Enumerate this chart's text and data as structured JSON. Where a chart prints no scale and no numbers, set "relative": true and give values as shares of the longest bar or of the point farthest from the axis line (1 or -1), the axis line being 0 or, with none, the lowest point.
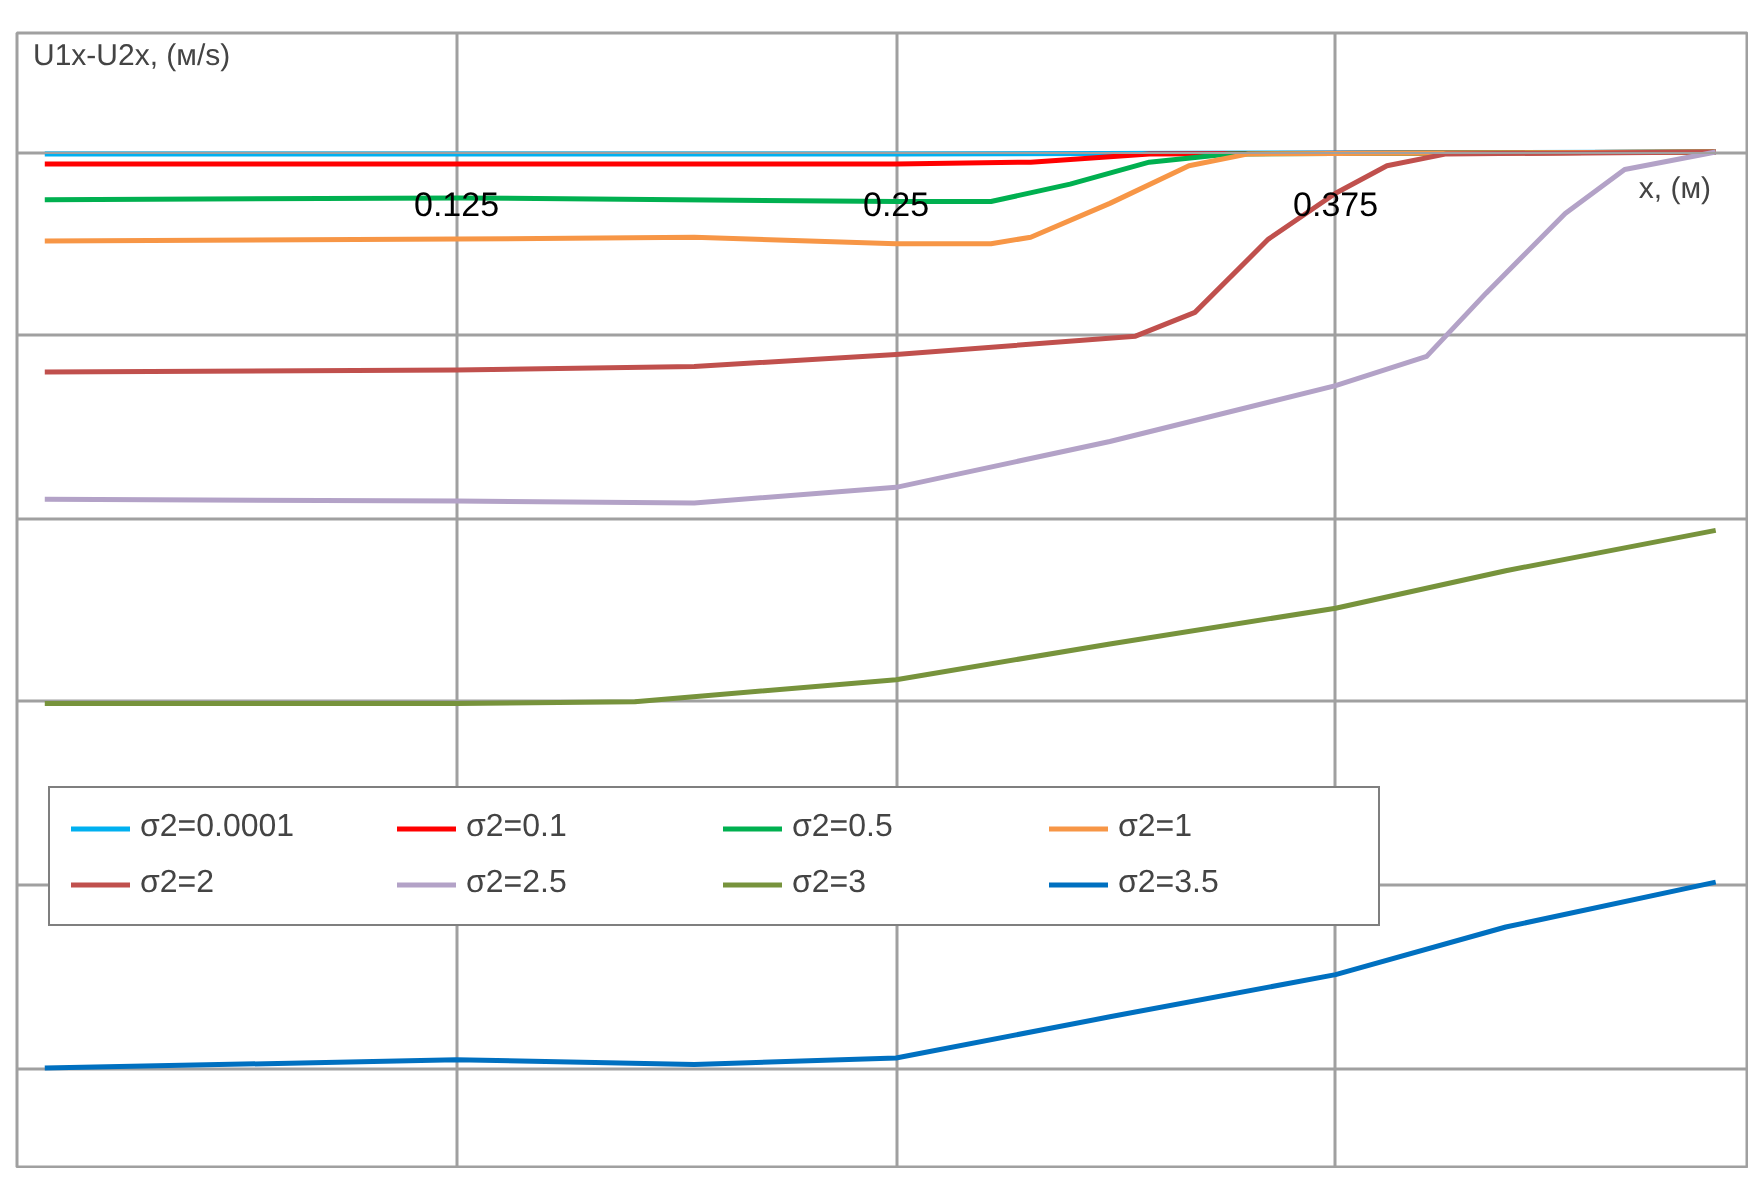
{
  "chart_data": {
    "type": "line",
    "relative": true,
    "ylabel": "U1x-U2x, (м/s)",
    "xlabel": "x, (м)",
    "xlim": [
      0,
      0.492
    ],
    "xticks": [
      0.125,
      0.25,
      0.375
    ],
    "grid": true,
    "legend": "bottom left",
    "marker": "none",
    "line_style": "solid",
    "series": [
      {
        "name": "σ2=0.0001",
        "color": "#00b0f0",
        "x": [
          0.0079,
          0.25,
          0.4831
        ],
        "values": [
          -0.002,
          -0.002,
          0
        ]
      },
      {
        "name": "σ2=0.1",
        "color": "#ff0000",
        "x": [
          0.0079,
          0.25,
          0.2883,
          0.322,
          0.4831
        ],
        "values": [
          -0.013,
          -0.013,
          -0.011,
          -0.002,
          0
        ]
      },
      {
        "name": "σ2=0.5",
        "color": "#00b050",
        "x": [
          0.0079,
          0.125,
          0.25,
          0.277,
          0.2995,
          0.322,
          0.3446,
          0.4831
        ],
        "values": [
          -0.052,
          -0.05,
          -0.054,
          -0.054,
          -0.035,
          -0.011,
          -0.002,
          0
        ]
      },
      {
        "name": "σ2=1",
        "color": "#f79646",
        "x": [
          0.0079,
          0.125,
          0.1926,
          0.25,
          0.277,
          0.2883,
          0.3108,
          0.3333,
          0.3502,
          0.4831
        ],
        "values": [
          -0.097,
          -0.095,
          -0.093,
          -0.1,
          -0.1,
          -0.093,
          -0.056,
          -0.015,
          -0.002,
          0
        ]
      },
      {
        "name": "σ2=2",
        "color": "#c0504d",
        "x": [
          0.0079,
          0.125,
          0.1926,
          0.25,
          0.3181,
          0.335,
          0.3559,
          0.375,
          0.3896,
          0.4065,
          0.4831
        ],
        "values": [
          -0.24,
          -0.238,
          -0.234,
          -0.221,
          -0.201,
          -0.175,
          -0.095,
          -0.045,
          -0.015,
          -0.002,
          0
        ]
      },
      {
        "name": "σ2=2.5",
        "color": "#b3a2c7",
        "x": [
          0.0079,
          0.125,
          0.1926,
          0.25,
          0.3108,
          0.375,
          0.4009,
          0.4178,
          0.4403,
          0.4572,
          0.4831
        ],
        "values": [
          -0.379,
          -0.381,
          -0.383,
          -0.366,
          -0.316,
          -0.255,
          -0.223,
          -0.154,
          -0.067,
          -0.019,
          0
        ]
      },
      {
        "name": "σ2=3",
        "color": "#77933c",
        "x": [
          0.0079,
          0.125,
          0.1757,
          0.25,
          0.3108,
          0.375,
          0.4234,
          0.4831
        ],
        "values": [
          -0.602,
          -0.602,
          -0.6,
          -0.576,
          -0.537,
          -0.498,
          -0.457,
          -0.413
        ]
      },
      {
        "name": "σ2=3.5",
        "color": "#0070c0",
        "x": [
          0.0079,
          0.125,
          0.1926,
          0.25,
          0.3108,
          0.375,
          0.4234,
          0.4831
        ],
        "values": [
          -1.0,
          -0.991,
          -0.996,
          -0.989,
          -0.944,
          -0.898,
          -0.846,
          -0.797
        ]
      }
    ]
  }
}
